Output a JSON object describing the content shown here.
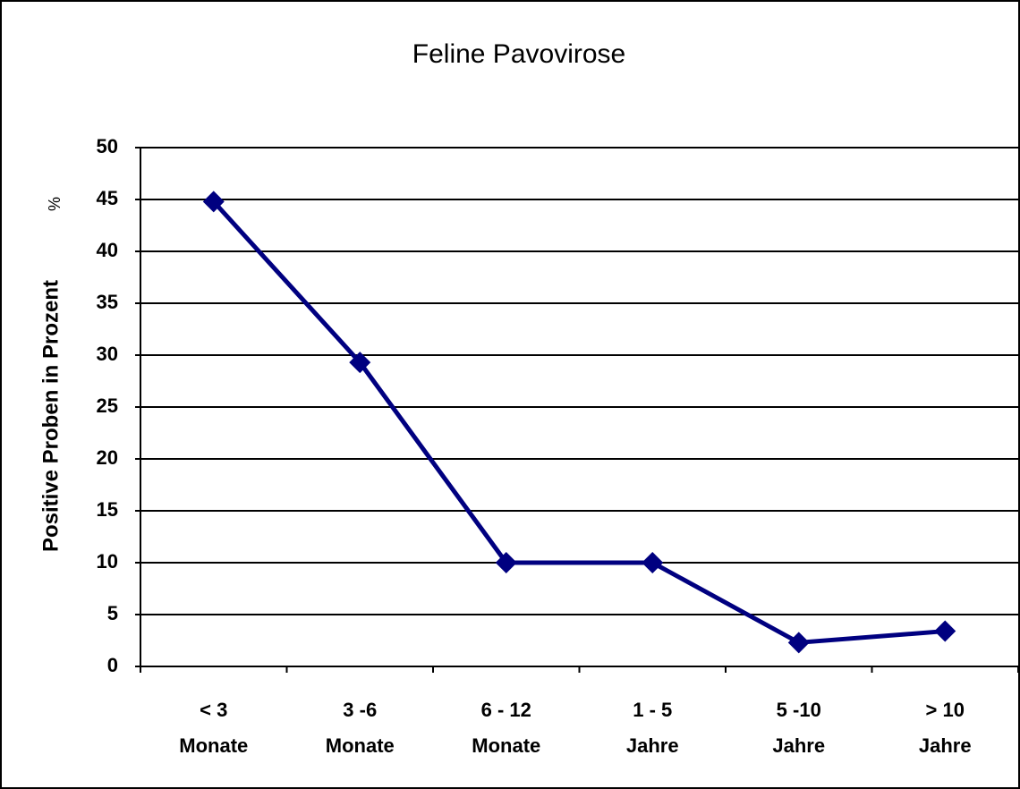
{
  "chart_data": {
    "type": "line",
    "title": "Feline Pavovirose",
    "y_label": "Positive Proben in Prozent",
    "y_unit": "%",
    "categories": [
      [
        "< 3",
        "Monate"
      ],
      [
        "3 -6",
        "Monate"
      ],
      [
        "6 - 12",
        "Monate"
      ],
      [
        "1 - 5",
        "Jahre"
      ],
      [
        "5 -10",
        "Jahre"
      ],
      [
        "> 10",
        "Jahre"
      ]
    ],
    "series": [
      {
        "name": "Positive Proben",
        "color": "#000080",
        "values": [
          44.8,
          29.3,
          10,
          10,
          2.3,
          3.4
        ]
      }
    ],
    "ylim": [
      0,
      50
    ],
    "yticks": [
      0,
      5,
      10,
      15,
      20,
      25,
      30,
      35,
      40,
      45,
      50
    ],
    "grid": true
  }
}
